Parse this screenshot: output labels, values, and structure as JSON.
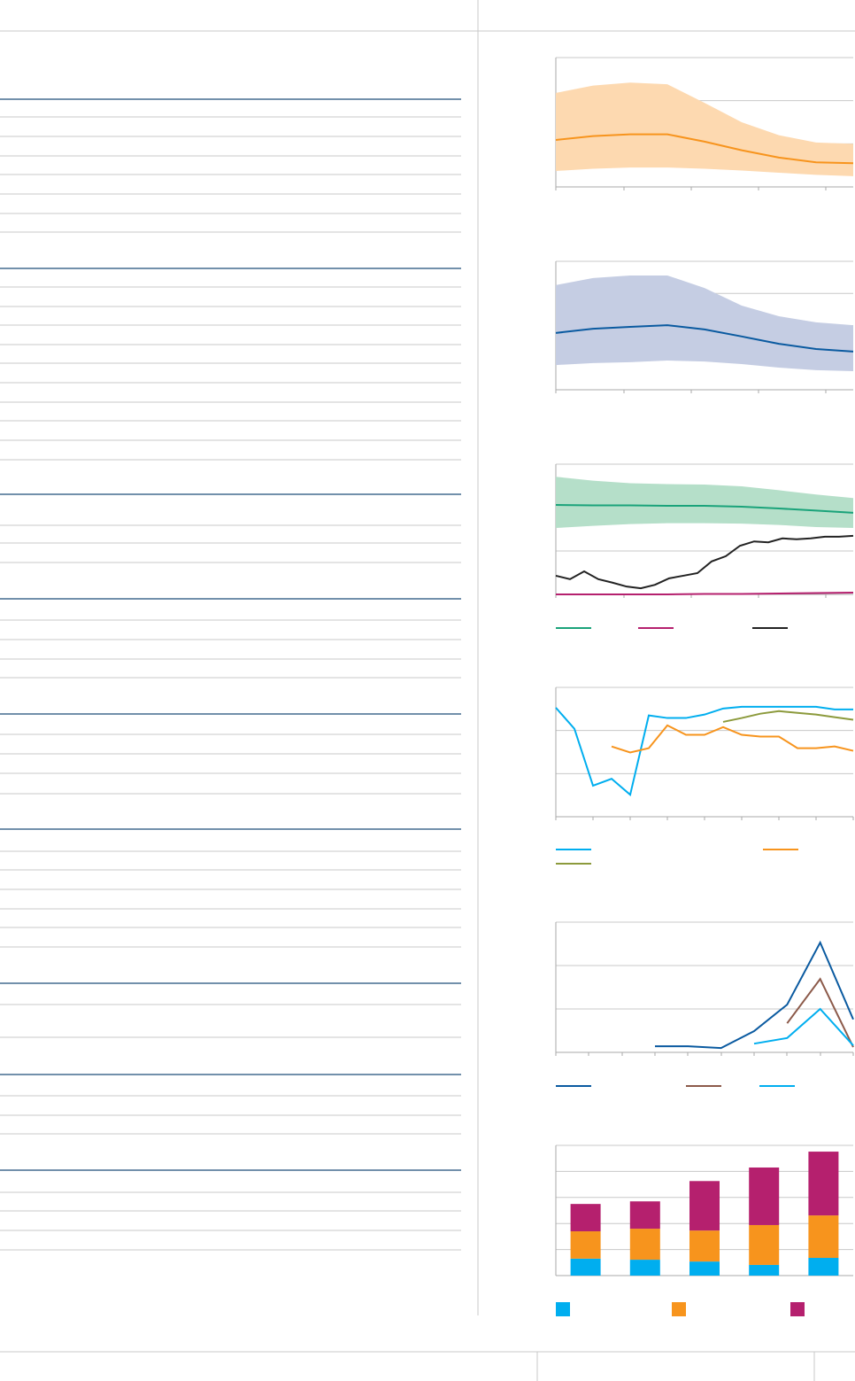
{
  "chart_data": [
    {
      "type": "line",
      "ylim": [
        0,
        3
      ],
      "yticks": [
        0,
        1,
        2,
        3
      ],
      "grid": true,
      "legend": false,
      "bands": [
        {
          "color": "#fdd9b0",
          "upper": [
            2.18,
            2.35,
            2.42,
            2.38,
            1.95,
            1.5,
            1.2,
            1.03,
            1.0
          ],
          "lower": [
            0.37,
            0.42,
            0.45,
            0.45,
            0.42,
            0.38,
            0.33,
            0.28,
            0.25
          ]
        }
      ],
      "series": [
        {
          "color": "#f7941d",
          "values": [
            1.09,
            1.18,
            1.22,
            1.22,
            1.05,
            0.85,
            0.68,
            0.57,
            0.55
          ]
        }
      ]
    },
    {
      "type": "line",
      "ylim": [
        0,
        4
      ],
      "yticks": [
        0,
        1,
        2,
        3,
        4
      ],
      "grid": true,
      "legend": false,
      "bands": [
        {
          "color": "#c5cde3",
          "upper": [
            3.26,
            3.48,
            3.56,
            3.56,
            3.17,
            2.62,
            2.29,
            2.1,
            2.01
          ],
          "lower": [
            0.77,
            0.83,
            0.86,
            0.91,
            0.88,
            0.8,
            0.69,
            0.61,
            0.58
          ]
        }
      ],
      "series": [
        {
          "color": "#0a5aa0",
          "values": [
            1.77,
            1.9,
            1.96,
            2.01,
            1.88,
            1.66,
            1.43,
            1.27,
            1.19
          ]
        }
      ]
    },
    {
      "type": "line",
      "ylim": [
        0,
        3
      ],
      "yticks": [
        0,
        1,
        2,
        3
      ],
      "grid": true,
      "legend": true,
      "bands": [
        {
          "color": "#b5dfc9",
          "upper": [
            2.71,
            2.62,
            2.56,
            2.54,
            2.53,
            2.49,
            2.4,
            2.3,
            2.22
          ],
          "lower": [
            1.53,
            1.58,
            1.62,
            1.64,
            1.64,
            1.63,
            1.6,
            1.55,
            1.53
          ]
        }
      ],
      "series": [
        {
          "color": "#1aa37a",
          "values": [
            2.06,
            2.05,
            2.05,
            2.04,
            2.04,
            2.02,
            1.98,
            1.93,
            1.88
          ]
        },
        {
          "color": "#b5206e",
          "values": [
            0,
            0,
            0,
            0,
            0.01,
            0.01,
            0.02,
            0.03,
            0.04
          ]
        },
        {
          "color": "#222222",
          "values": [
            0.43,
            0.35,
            0.53,
            0.35,
            0.27,
            0.18,
            0.14,
            0.22,
            0.37,
            0.43,
            0.49,
            0.76,
            0.88,
            1.12,
            1.22,
            1.2,
            1.29,
            1.27,
            1.29,
            1.33,
            1.33,
            1.35
          ]
        }
      ]
    },
    {
      "type": "line",
      "ylim": [
        0,
        3
      ],
      "yticks": [
        0,
        1,
        2,
        3
      ],
      "grid": true,
      "legend": true,
      "series": [
        {
          "color": "#00aeef",
          "values": [
            2.53,
            2.04,
            0.72,
            0.88,
            0.51,
            2.35,
            2.29,
            2.29,
            2.37,
            2.51,
            2.55,
            2.55,
            2.55,
            2.55,
            2.55,
            2.49,
            2.49
          ]
        },
        {
          "color": "#f7941d",
          "values": [
            null,
            null,
            null,
            1.63,
            1.49,
            1.59,
            2.12,
            1.9,
            1.9,
            2.08,
            1.9,
            1.86,
            1.86,
            1.59,
            1.59,
            1.63,
            1.53
          ]
        },
        {
          "color": "#8c9a3c",
          "values": [
            null,
            null,
            null,
            null,
            null,
            null,
            null,
            null,
            null,
            2.2,
            2.29,
            2.39,
            2.45,
            2.41,
            2.37,
            2.31,
            2.25
          ]
        }
      ]
    },
    {
      "type": "line",
      "ylim": [
        0,
        3
      ],
      "yticks": [
        0,
        1,
        2,
        3
      ],
      "grid": true,
      "legend": true,
      "series": [
        {
          "color": "#0a5aa0",
          "values": [
            null,
            null,
            null,
            0.14,
            0.14,
            0.1,
            0.49,
            1.1,
            2.53,
            0.76
          ]
        },
        {
          "color": "#8c5a4a",
          "values": [
            null,
            null,
            null,
            null,
            null,
            null,
            null,
            0.67,
            1.69,
            0.12
          ]
        },
        {
          "color": "#00aeef",
          "values": [
            null,
            null,
            null,
            null,
            null,
            null,
            0.2,
            0.33,
            1.0,
            0.16
          ]
        }
      ]
    },
    {
      "type": "bar",
      "stacked": true,
      "ylim": [
        0,
        5
      ],
      "yticks": [
        0,
        1,
        2,
        3,
        4,
        5
      ],
      "grid": true,
      "legend": true,
      "series": [
        {
          "color": "#00aeef",
          "values": [
            0.65,
            0.61,
            0.54,
            0.41,
            0.68
          ]
        },
        {
          "color": "#f7941d",
          "values": [
            1.05,
            1.19,
            1.19,
            1.53,
            1.63
          ]
        },
        {
          "color": "#b5206e",
          "values": [
            1.05,
            1.05,
            1.9,
            2.21,
            2.45
          ]
        }
      ]
    }
  ]
}
